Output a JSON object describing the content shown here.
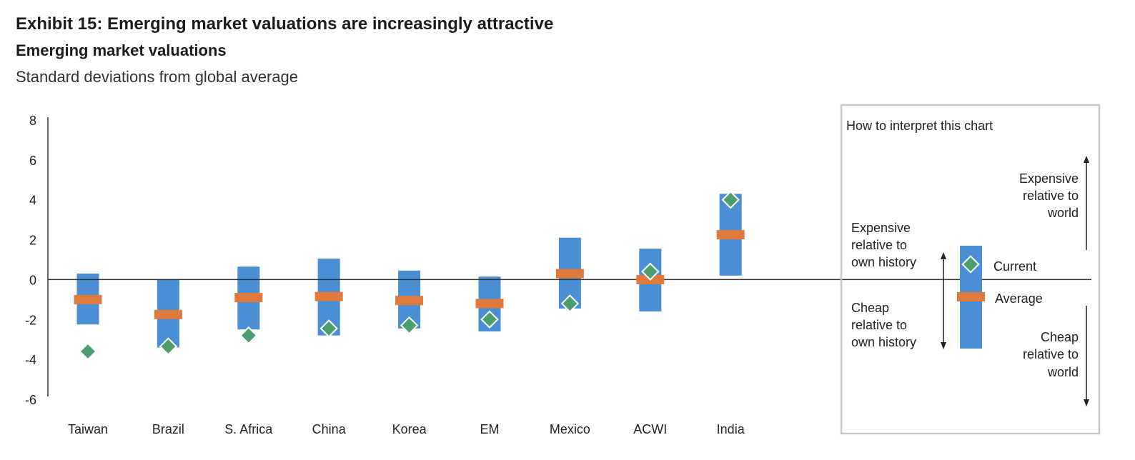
{
  "header": {
    "title": "Exhibit 15: Emerging market valuations are increasingly attractive",
    "subtitle": "Emerging market valuations",
    "units": "Standard deviations from global average"
  },
  "chart_data": {
    "type": "range-bar",
    "categories": [
      "Taiwan",
      "Brazil",
      "S. Africa",
      "China",
      "Korea",
      "EM",
      "Mexico",
      "ACWI",
      "India"
    ],
    "series": [
      {
        "name": "Current",
        "values": [
          -3.6,
          -3.35,
          -2.8,
          -2.45,
          -2.3,
          -2.0,
          -1.2,
          0.4,
          4.0
        ]
      },
      {
        "name": "Average",
        "values": [
          -1.0,
          -1.75,
          -0.9,
          -0.85,
          -1.05,
          -1.2,
          0.3,
          0.0,
          2.25
        ]
      }
    ],
    "ranges": [
      {
        "low": -2.25,
        "high": 0.3
      },
      {
        "low": -3.4,
        "high": 0.0
      },
      {
        "low": -2.5,
        "high": 0.65
      },
      {
        "low": -2.8,
        "high": 1.05
      },
      {
        "low": -2.45,
        "high": 0.45
      },
      {
        "low": -2.6,
        "high": 0.15
      },
      {
        "low": -1.45,
        "high": 2.1
      },
      {
        "low": -1.6,
        "high": 1.55
      },
      {
        "low": 0.2,
        "high": 4.3
      }
    ],
    "ylim": [
      -6,
      8
    ],
    "yticks": [
      "8",
      "6",
      "4",
      "2",
      "0",
      "-2",
      "-4",
      "-6"
    ],
    "ytick_values": [
      8,
      6,
      4,
      2,
      0,
      -2,
      -4,
      -6
    ],
    "grid": false,
    "colors": {
      "range": "#4a8fd4",
      "average": "#e07a3c",
      "current": "#4c9e6c",
      "axis": "#333333"
    }
  },
  "legend": {
    "title": "How to interpret this chart",
    "expensive_world": [
      "Expensive",
      "relative to",
      "world"
    ],
    "expensive_history": [
      "Expensive",
      "relative to",
      "own history"
    ],
    "cheap_history": [
      "Cheap",
      "relative to",
      "own history"
    ],
    "cheap_world": [
      "Cheap",
      "relative to",
      "world"
    ],
    "current_label": "Current",
    "average_label": "Average",
    "border_color": "#c8c8c8"
  }
}
